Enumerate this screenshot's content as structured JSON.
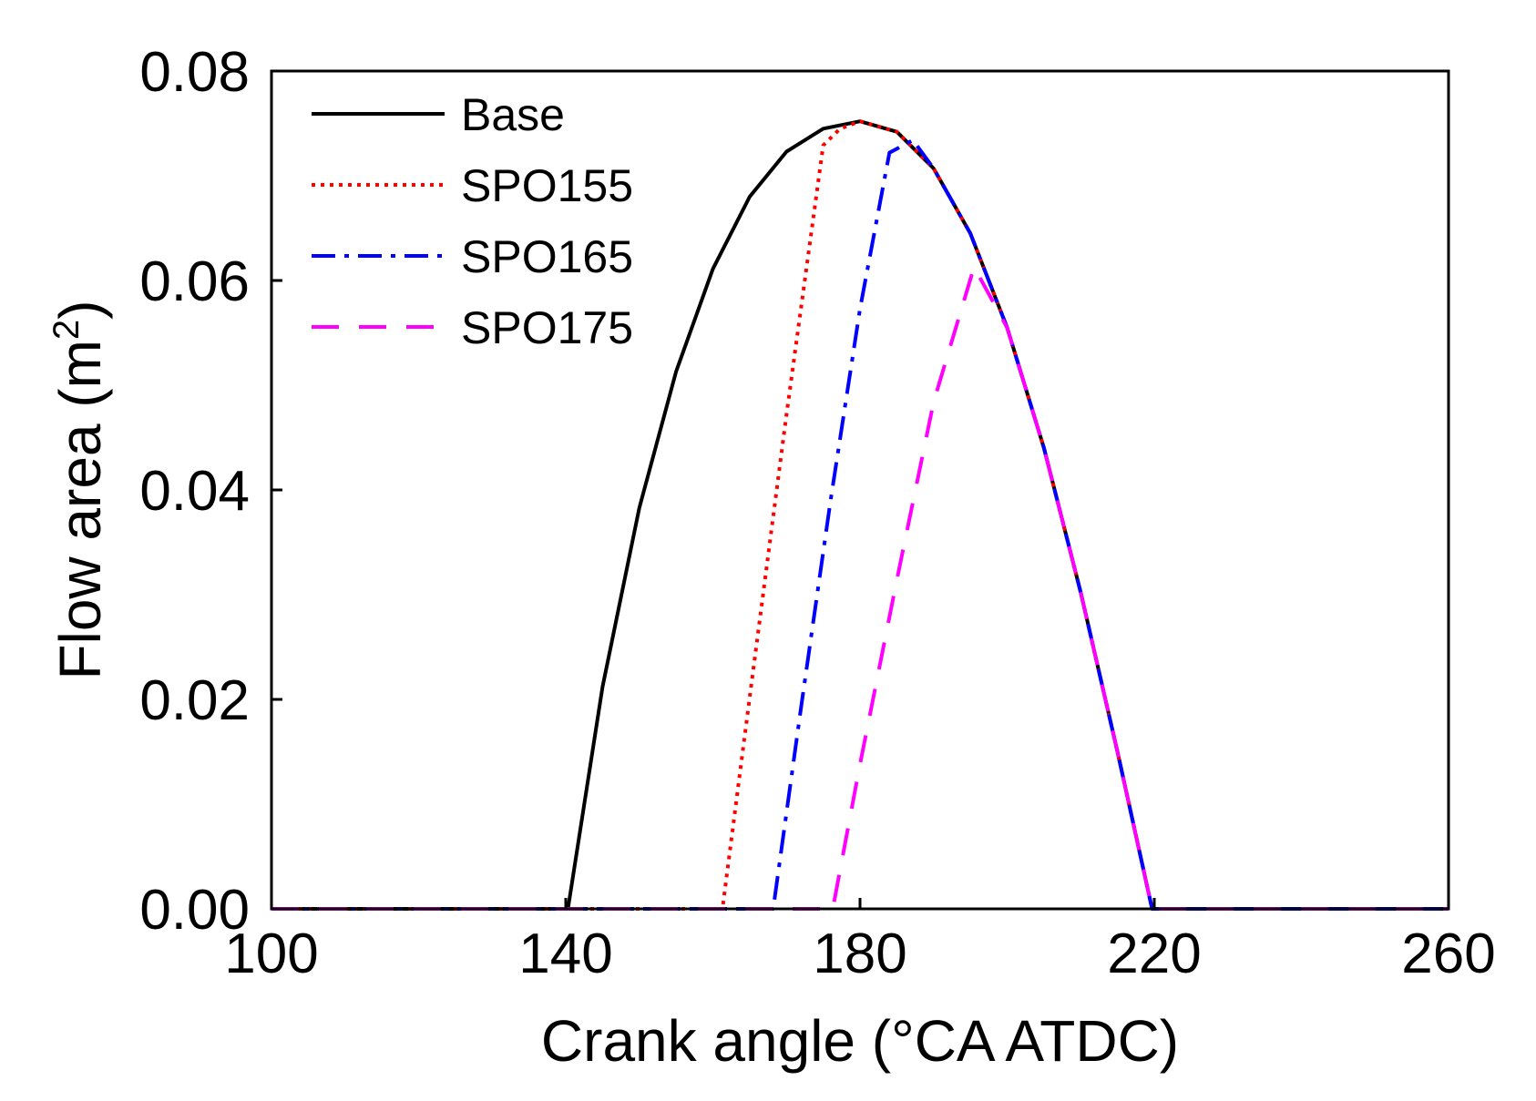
{
  "chart_data": {
    "type": "line",
    "title": "",
    "xlabel": "Crank angle (°CA ATDC)",
    "ylabel_main": "Flow area (m",
    "ylabel_sup": "2",
    "ylabel_close": ")",
    "xlim": [
      100,
      260
    ],
    "ylim": [
      0,
      0.08
    ],
    "x_ticks": [
      100,
      140,
      180,
      220,
      260
    ],
    "x_tick_labels": [
      "100",
      "140",
      "180",
      "220",
      "260"
    ],
    "y_ticks": [
      0,
      0.02,
      0.04,
      0.06,
      0.08
    ],
    "y_tick_labels": [
      "0.00",
      "0.02",
      "0.04",
      "0.06",
      "0.08"
    ],
    "grid": false,
    "legend_position": "top-left",
    "series": [
      {
        "name": "Base",
        "color": "#000000",
        "style": "solid",
        "x": [
          100,
          140.3,
          145,
          150,
          155,
          160,
          165,
          170,
          175,
          180,
          185,
          190,
          195,
          200,
          205,
          210,
          215,
          219.7,
          260
        ],
        "y": [
          0,
          0,
          0.0212,
          0.0383,
          0.0513,
          0.0611,
          0.068,
          0.0723,
          0.0745,
          0.0752,
          0.0742,
          0.0707,
          0.0645,
          0.0555,
          0.044,
          0.0302,
          0.015,
          0,
          0
        ]
      },
      {
        "name": "SPO155",
        "color": "#ff0000",
        "style": "dotted",
        "x": [
          100,
          161.3,
          165,
          170,
          175,
          177.3,
          180,
          185,
          190,
          195,
          200,
          205,
          210,
          215,
          219.7,
          260
        ],
        "y": [
          0,
          0,
          0.0202,
          0.0472,
          0.0729,
          0.0745,
          0.0752,
          0.0742,
          0.0707,
          0.0645,
          0.0555,
          0.044,
          0.0302,
          0.015,
          0,
          0
        ]
      },
      {
        "name": "SPO165",
        "color": "#0000ff",
        "style": "dashdot",
        "x": [
          100,
          168.2,
          172,
          176,
          180,
          184,
          187.2,
          190,
          195,
          200,
          205,
          210,
          215,
          219.7,
          260
        ],
        "y": [
          0,
          0,
          0.0193,
          0.039,
          0.0573,
          0.0722,
          0.0734,
          0.0707,
          0.0645,
          0.0555,
          0.044,
          0.0302,
          0.015,
          0,
          0
        ]
      },
      {
        "name": "SPO175",
        "color": "#ff00ff",
        "style": "dashed",
        "x": [
          100,
          176.3,
          180,
          185,
          190,
          195.5,
          200,
          205,
          210,
          215,
          219.7,
          260
        ],
        "y": [
          0,
          0,
          0.0138,
          0.0314,
          0.0484,
          0.0613,
          0.0555,
          0.044,
          0.0302,
          0.015,
          0,
          0
        ]
      }
    ]
  }
}
